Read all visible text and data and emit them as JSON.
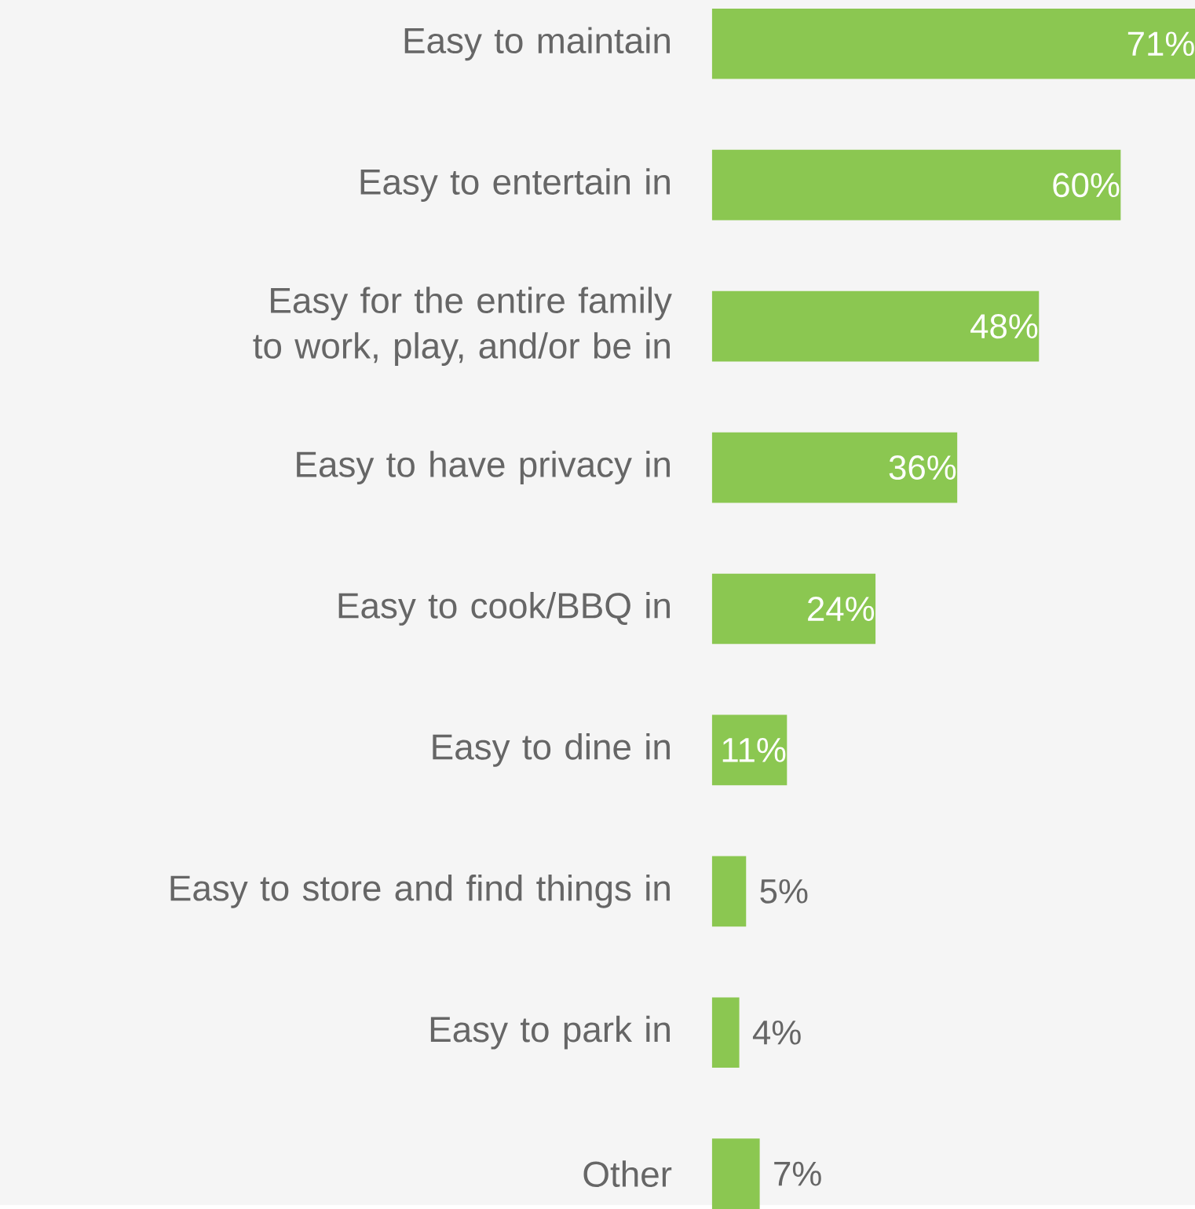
{
  "chart_data": {
    "type": "bar",
    "orientation": "horizontal",
    "categories": [
      "Easy to maintain",
      "Easy to entertain in",
      "Easy for the entire family to work, play, and/or be in",
      "Easy to have privacy in",
      "Easy to cook/BBQ in",
      "Easy to dine in",
      "Easy to store and find things in",
      "Easy to park in",
      "Other"
    ],
    "values": [
      71,
      60,
      48,
      36,
      24,
      11,
      5,
      4,
      7
    ],
    "value_labels": [
      "71%",
      "60%",
      "48%",
      "36%",
      "24%",
      "11%",
      "5%",
      "4%",
      "7%"
    ],
    "color": "#8bc751"
  }
}
